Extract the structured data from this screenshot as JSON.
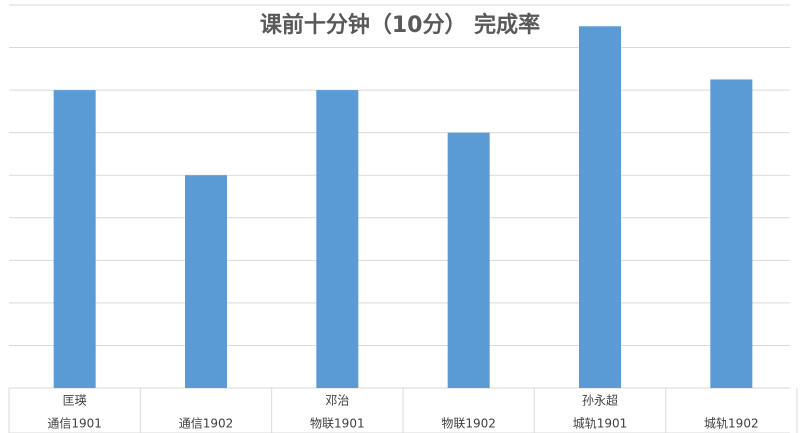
{
  "chart_data": {
    "type": "bar",
    "title": "课前十分钟（10分） 完成率",
    "groups": [
      "匡瑛",
      "邓治",
      "孙永超"
    ],
    "categories": [
      "通信1901",
      "通信1902",
      "物联1901",
      "物联1902",
      "城轨1901",
      "城轨1902"
    ],
    "values": [
      7,
      5,
      7,
      6,
      8.5,
      7.25
    ],
    "color": "#5b9bd5",
    "ylim": [
      0,
      9
    ],
    "yticks": [
      0,
      1,
      2,
      3,
      4,
      5,
      6,
      7,
      8,
      9
    ],
    "grid": true
  }
}
